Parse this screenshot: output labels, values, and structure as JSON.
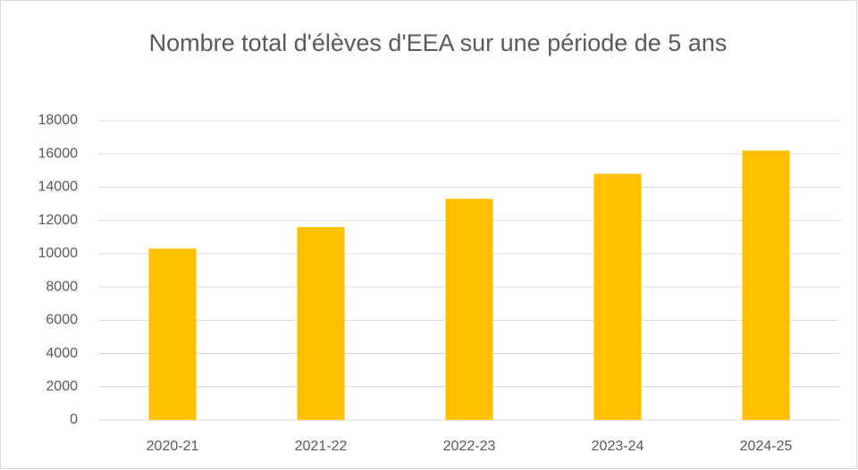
{
  "chart_data": {
    "type": "bar",
    "title": "Nombre total d'élèves d'EEA sur une période de 5 ans",
    "categories": [
      "2020-21",
      "2021-22",
      "2022-23",
      "2023-24",
      "2024-25"
    ],
    "values": [
      10300,
      11600,
      13300,
      14800,
      16200
    ],
    "color": "#ffc000",
    "ylim": [
      0,
      18000
    ],
    "yticks": [
      0,
      2000,
      4000,
      6000,
      8000,
      10000,
      12000,
      14000,
      16000,
      18000
    ],
    "grid": true
  }
}
